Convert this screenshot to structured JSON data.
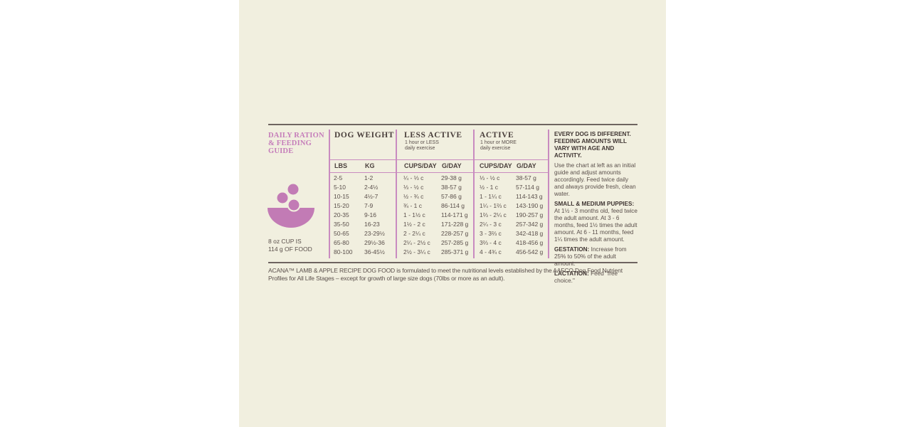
{
  "title": "DAILY RATION & FEEDING GUIDE",
  "cup_note": [
    "8 oz CUP IS",
    "114 g OF FOOD"
  ],
  "dog_weight": {
    "title": "DOG WEIGHT",
    "columns": [
      "LBS",
      "KG"
    ]
  },
  "less_active": {
    "title": "LESS ACTIVE",
    "subtitle": [
      "1 hour or LESS",
      "daily exercise"
    ],
    "columns": [
      "CUPS/DAY",
      "G/DAY"
    ]
  },
  "active": {
    "title": "ACTIVE",
    "subtitle": [
      "1 hour or MORE",
      "daily exercise"
    ],
    "columns": [
      "CUPS/DAY",
      "G/DAY"
    ]
  },
  "rows": [
    [
      "2-5",
      "1-2",
      "¼ - ⅓ c",
      "29-38 g",
      "⅓ - ½ c",
      "38-57 g"
    ],
    [
      "5-10",
      "2-4½",
      "⅓ - ½ c",
      "38-57 g",
      "½ - 1 c",
      "57-114 g"
    ],
    [
      "10-15",
      "4½-7",
      "½ - ¾ c",
      "57-86 g",
      "1 - 1¼ c",
      "114-143 g"
    ],
    [
      "15-20",
      "7-9",
      "¾ - 1 c",
      "86-114 g",
      "1¼ - 1⅔ c",
      "143-190 g"
    ],
    [
      "20-35",
      "9-16",
      "1 - 1½ c",
      "114-171 g",
      "1⅔ - 2¼ c",
      "190-257 g"
    ],
    [
      "35-50",
      "16-23",
      "1½ - 2 c",
      "171-228 g",
      "2¼ - 3 c",
      "257-342 g"
    ],
    [
      "50-65",
      "23-29½",
      "2 - 2¼ c",
      "228-257 g",
      "3 - 3⅔ c",
      "342-418 g"
    ],
    [
      "65-80",
      "29½-36",
      "2¼ - 2½ c",
      "257-285 g",
      "3⅔ - 4 c",
      "418-456 g"
    ],
    [
      "80-100",
      "36-45½",
      "2½ - 3¼ c",
      "285-371 g",
      "4 - 4¾ c",
      "456-542 g"
    ]
  ],
  "side_note": {
    "heading": "EVERY DOG IS DIFFERENT. FEEDING AMOUNTS WILL VARY WITH AGE AND ACTIVITY.",
    "intro": "Use the chart at left as an initial guide and adjust amounts accordingly. Feed twice daily and always provide fresh, clean water.",
    "sections": [
      {
        "label": "SMALL & MEDIUM PUPPIES:",
        "text": "At 1½ - 3 months old, feed twice the adult amount. At 3 - 6 months, feed 1½ times the adult amount. At 6 - 11 months, feed 1¼ times the adult amount."
      },
      {
        "label": "GESTATION:",
        "text": "Increase from 25% to 50% of the adult amount."
      },
      {
        "label": "LACTATION:",
        "text": "Feed \"free choice.\""
      }
    ]
  },
  "footer": "ACANA™ LAMB & APPLE RECIPE DOG FOOD is formulated to meet the nutritional levels established by the AAFCO Dog Food Nutrient Profiles for All Life Stages – except for growth of large size dogs (70lbs or more as an adult)."
}
